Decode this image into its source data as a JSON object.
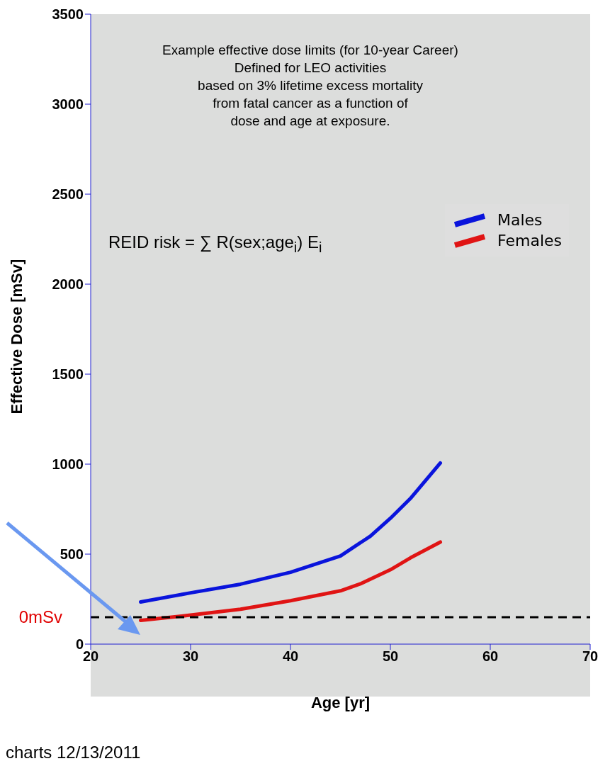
{
  "chart_data": {
    "type": "line",
    "title": "Example effective dose limits (for 10-year Career)\nDefined for LEO activities\nbased on 3%  lifetime excess mortality\nfrom fatal cancer as a function of\ndose and age at exposure.",
    "xlabel": "Age [yr]",
    "ylabel": "Effective Dose [mSv]",
    "series": [
      {
        "name": "Males",
        "color": "#0a14dc",
        "x": [
          25,
          30,
          35,
          40,
          45,
          48,
          50,
          52,
          55
        ],
        "values": [
          234,
          285,
          333,
          399,
          490,
          600,
          699,
          809,
          1006
        ]
      },
      {
        "name": "Females",
        "color": "#e01414",
        "x": [
          25,
          30,
          35,
          40,
          45,
          47,
          50,
          52,
          55
        ],
        "values": [
          132,
          161,
          194,
          241,
          296,
          335,
          413,
          479,
          567
        ]
      }
    ],
    "xlim": [
      20,
      70
    ],
    "xticks": [
      20,
      30,
      40,
      50,
      60,
      70
    ],
    "ylim": [
      0,
      3500
    ],
    "yticks": [
      0,
      500,
      1000,
      1500,
      2000,
      2500,
      3000,
      3500
    ],
    "ref_lines": [
      {
        "axis": "y",
        "value": 150,
        "label": "0mSv",
        "color": "#000000",
        "line_style": "dashed"
      }
    ],
    "annotations": [
      "REID risk = ∑  R(sex;age$_{i}$) E$_{i}$",
      "charts  12/13/2011"
    ],
    "legend": "top right",
    "marker": "none",
    "line_style": "solid"
  }
}
